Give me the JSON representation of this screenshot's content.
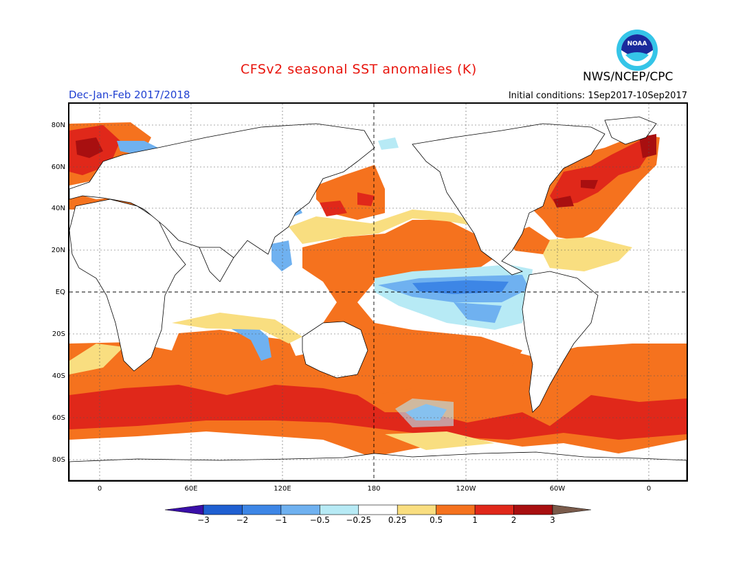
{
  "title": "CFSv2 seasonal SST anomalies (K)",
  "agency": "NWS/NCEP/CPC",
  "logo_text": "NOAA",
  "season": "Dec-Jan-Feb 2017/2018",
  "initial_conditions": "Initial conditions: 1Sep2017-10Sep2017",
  "lat_labels": [
    "80N",
    "60N",
    "40N",
    "20N",
    "EQ",
    "20S",
    "40S",
    "60S",
    "80S"
  ],
  "lon_labels": [
    "0",
    "60E",
    "120E",
    "180",
    "120W",
    "60W",
    "0"
  ],
  "colorbar": {
    "ticks": [
      "-3",
      "-2",
      "-1",
      "-0.5",
      "-0.25",
      "0.25",
      "0.5",
      "1",
      "2",
      "3"
    ],
    "colors": [
      "#3a0fa8",
      "#1f5fd1",
      "#3d86e6",
      "#6fb1f0",
      "#b7eaf5",
      "#ffffff",
      "#f9de80",
      "#f5721e",
      "#e0281a",
      "#a80f10",
      "#7a5b4b"
    ]
  }
}
